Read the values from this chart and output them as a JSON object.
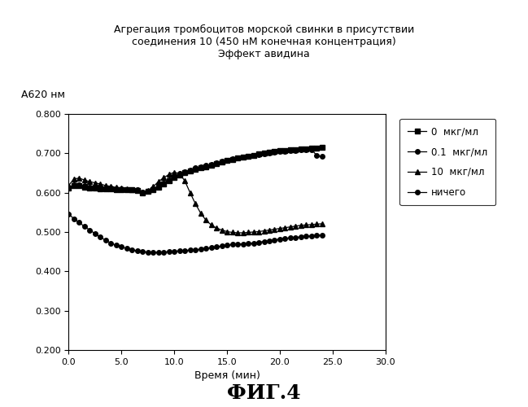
{
  "title_line1": "Агрегация тромбоцитов морской свинки в присутствии",
  "title_line2": "соединения 10 (450 нМ конечная концентрация)",
  "title_line3": "Эффект авидина",
  "ylabel": "А620 нм",
  "xlabel": "Время (мин)",
  "fig_label": "ФИГ.4",
  "xlim": [
    0.0,
    30.0
  ],
  "ylim": [
    0.2,
    0.8
  ],
  "xticks": [
    0.0,
    5.0,
    10.0,
    15.0,
    20.0,
    25.0,
    30.0
  ],
  "yticks": [
    0.2,
    0.3,
    0.4,
    0.5,
    0.6,
    0.7,
    0.8
  ],
  "series": [
    {
      "label": "0  мкг/мл",
      "marker": "s",
      "color": "#000000",
      "x": [
        0.0,
        0.5,
        1.0,
        1.5,
        2.0,
        2.5,
        3.0,
        3.5,
        4.0,
        4.5,
        5.0,
        5.5,
        6.0,
        6.5,
        7.0,
        7.5,
        8.0,
        8.5,
        9.0,
        9.5,
        10.0,
        10.5,
        11.0,
        11.5,
        12.0,
        12.5,
        13.0,
        13.5,
        14.0,
        14.5,
        15.0,
        15.5,
        16.0,
        16.5,
        17.0,
        17.5,
        18.0,
        18.5,
        19.0,
        19.5,
        20.0,
        20.5,
        21.0,
        21.5,
        22.0,
        22.5,
        23.0,
        23.5,
        24.0
      ],
      "y": [
        0.612,
        0.618,
        0.618,
        0.614,
        0.612,
        0.612,
        0.61,
        0.61,
        0.609,
        0.608,
        0.608,
        0.607,
        0.607,
        0.606,
        0.6,
        0.603,
        0.608,
        0.614,
        0.622,
        0.63,
        0.638,
        0.645,
        0.65,
        0.655,
        0.66,
        0.663,
        0.666,
        0.67,
        0.674,
        0.678,
        0.682,
        0.685,
        0.688,
        0.69,
        0.693,
        0.695,
        0.698,
        0.7,
        0.702,
        0.704,
        0.706,
        0.707,
        0.708,
        0.71,
        0.711,
        0.712,
        0.713,
        0.714,
        0.715
      ]
    },
    {
      "label": "0.1  мкг/мл",
      "marker": "o",
      "color": "#000000",
      "x": [
        0.0,
        0.5,
        1.0,
        1.5,
        2.0,
        2.5,
        3.0,
        3.5,
        4.0,
        4.5,
        5.0,
        5.5,
        6.0,
        6.5,
        7.0,
        7.5,
        8.0,
        8.5,
        9.0,
        9.5,
        10.0,
        10.5,
        11.0,
        11.5,
        12.0,
        12.5,
        13.0,
        13.5,
        14.0,
        14.5,
        15.0,
        15.5,
        16.0,
        16.5,
        17.0,
        17.5,
        18.0,
        18.5,
        19.0,
        19.5,
        20.0,
        20.5,
        21.0,
        21.5,
        22.0,
        22.5,
        23.0,
        23.5,
        24.0
      ],
      "y": [
        0.613,
        0.62,
        0.62,
        0.617,
        0.614,
        0.613,
        0.612,
        0.612,
        0.611,
        0.61,
        0.609,
        0.608,
        0.607,
        0.607,
        0.601,
        0.604,
        0.61,
        0.617,
        0.625,
        0.633,
        0.641,
        0.648,
        0.653,
        0.658,
        0.663,
        0.666,
        0.669,
        0.672,
        0.675,
        0.679,
        0.683,
        0.686,
        0.689,
        0.691,
        0.693,
        0.695,
        0.697,
        0.699,
        0.701,
        0.703,
        0.704,
        0.705,
        0.706,
        0.707,
        0.708,
        0.709,
        0.71,
        0.694,
        0.692
      ]
    },
    {
      "label": "10  мкг/мл",
      "marker": "^",
      "color": "#000000",
      "x": [
        0.0,
        0.5,
        1.0,
        1.5,
        2.0,
        2.5,
        3.0,
        3.5,
        4.0,
        4.5,
        5.0,
        5.5,
        6.0,
        6.5,
        7.0,
        7.5,
        8.0,
        8.5,
        9.0,
        9.5,
        10.0,
        10.5,
        11.0,
        11.5,
        12.0,
        12.5,
        13.0,
        13.5,
        14.0,
        14.5,
        15.0,
        15.5,
        16.0,
        16.5,
        17.0,
        17.5,
        18.0,
        18.5,
        19.0,
        19.5,
        20.0,
        20.5,
        21.0,
        21.5,
        22.0,
        22.5,
        23.0,
        23.5,
        24.0
      ],
      "y": [
        0.618,
        0.635,
        0.637,
        0.632,
        0.628,
        0.625,
        0.622,
        0.618,
        0.616,
        0.613,
        0.611,
        0.609,
        0.608,
        0.607,
        0.601,
        0.605,
        0.615,
        0.628,
        0.638,
        0.646,
        0.652,
        0.648,
        0.63,
        0.6,
        0.572,
        0.548,
        0.53,
        0.518,
        0.51,
        0.505,
        0.501,
        0.499,
        0.498,
        0.498,
        0.499,
        0.5,
        0.501,
        0.503,
        0.505,
        0.507,
        0.509,
        0.511,
        0.513,
        0.515,
        0.517,
        0.518,
        0.519,
        0.52,
        0.521
      ]
    },
    {
      "label": "ничего",
      "marker": "o",
      "color": "#000000",
      "x": [
        0.0,
        0.5,
        1.0,
        1.5,
        2.0,
        2.5,
        3.0,
        3.5,
        4.0,
        4.5,
        5.0,
        5.5,
        6.0,
        6.5,
        7.0,
        7.5,
        8.0,
        8.5,
        9.0,
        9.5,
        10.0,
        10.5,
        11.0,
        11.5,
        12.0,
        12.5,
        13.0,
        13.5,
        14.0,
        14.5,
        15.0,
        15.5,
        16.0,
        16.5,
        17.0,
        17.5,
        18.0,
        18.5,
        19.0,
        19.5,
        20.0,
        20.5,
        21.0,
        21.5,
        22.0,
        22.5,
        23.0,
        23.5,
        24.0
      ],
      "y": [
        0.545,
        0.534,
        0.524,
        0.514,
        0.505,
        0.496,
        0.487,
        0.479,
        0.472,
        0.466,
        0.462,
        0.458,
        0.455,
        0.452,
        0.45,
        0.449,
        0.448,
        0.448,
        0.449,
        0.45,
        0.451,
        0.452,
        0.453,
        0.454,
        0.455,
        0.456,
        0.458,
        0.46,
        0.462,
        0.464,
        0.466,
        0.468,
        0.469,
        0.47,
        0.471,
        0.472,
        0.474,
        0.476,
        0.478,
        0.48,
        0.482,
        0.484,
        0.485,
        0.486,
        0.488,
        0.489,
        0.49,
        0.491,
        0.492
      ]
    }
  ],
  "background_color": "#ffffff",
  "plot_bg_color": "#ffffff"
}
